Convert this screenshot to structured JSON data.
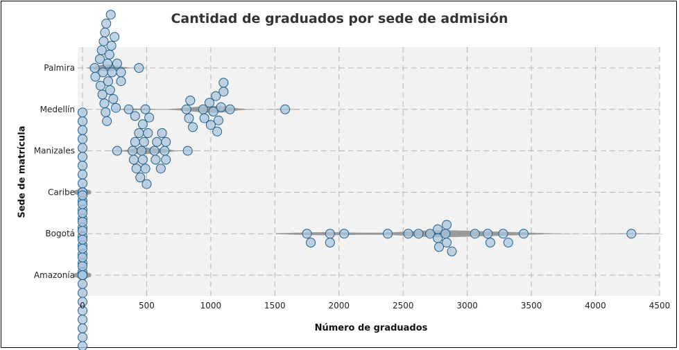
{
  "chart_data": {
    "type": "scatter",
    "subtype": "beeswarm-violin",
    "title": "Cantidad de graduados por sede de admisión",
    "xlabel": "Número de graduados",
    "ylabel": "Sede de matrícula",
    "xlim": [
      0,
      4500
    ],
    "xticks": [
      0,
      500,
      1000,
      1500,
      2000,
      2500,
      3000,
      3500,
      4000,
      4500
    ],
    "grid": true,
    "colors": {
      "point_fill": "#a9c4dc",
      "point_stroke": "#1f5f8b",
      "violin": "#8c8c8c",
      "panel": "#f2f2f2",
      "grid": "#b5b5b5"
    },
    "categories": [
      "Palmira",
      "Medellín",
      "Manizales",
      "Caribe",
      "Bogotá",
      "Amazonía"
    ],
    "series": [
      {
        "category": "Palmira",
        "values": [
          100,
          95,
          135,
          140,
          155,
          150,
          160,
          165,
          170,
          175,
          180,
          185,
          190,
          195,
          200,
          210,
          215,
          220,
          225,
          230,
          240,
          250,
          260,
          270,
          300,
          300,
          440
        ]
      },
      {
        "category": "Medellín",
        "values": [
          360,
          410,
          490,
          810,
          830,
          840,
          860,
          940,
          950,
          990,
          1000,
          1020,
          1040,
          1050,
          1060,
          1080,
          1100,
          1100,
          1150,
          1580
        ]
      },
      {
        "category": "Manizales",
        "values": [
          270,
          390,
          400,
          410,
          420,
          440,
          450,
          460,
          470,
          470,
          480,
          490,
          500,
          510,
          520,
          560,
          570,
          580,
          610,
          620,
          640,
          650,
          650,
          820
        ]
      },
      {
        "category": "Caribe",
        "values": [
          0,
          0,
          0,
          0,
          0,
          0,
          0,
          0,
          0,
          0,
          0,
          0,
          0,
          0,
          0,
          0,
          0,
          0,
          0,
          0,
          0,
          0,
          0,
          0
        ]
      },
      {
        "category": "Bogotá",
        "values": [
          1750,
          1780,
          1930,
          1930,
          2040,
          2380,
          2540,
          2620,
          2710,
          2770,
          2770,
          2780,
          2830,
          2840,
          2840,
          2880,
          3060,
          3160,
          3180,
          3280,
          3320,
          3440,
          4280
        ]
      },
      {
        "category": "Amazonía",
        "values": [
          0,
          0,
          0,
          0,
          0,
          0,
          0,
          0,
          0,
          0,
          0,
          0,
          0,
          0,
          0,
          0,
          0,
          0,
          0,
          0,
          0,
          0,
          0,
          0,
          0,
          0,
          0
        ]
      }
    ]
  }
}
